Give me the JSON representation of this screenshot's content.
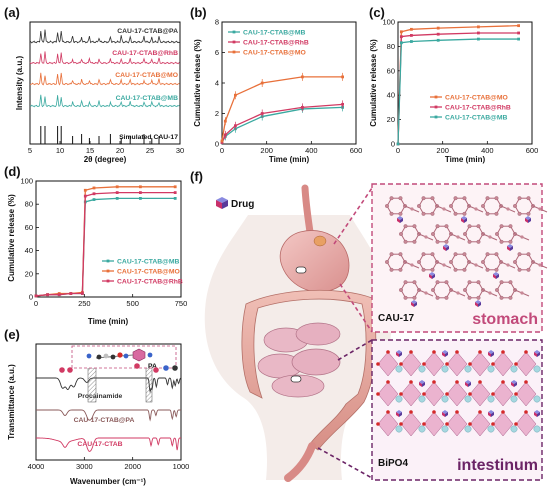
{
  "figure": {
    "panels": [
      "(a)",
      "(b)",
      "(c)",
      "(d)",
      "(e)",
      "(f)"
    ],
    "drug_label": "Drug",
    "cau17_label": "CAU-17",
    "stomach_label": "stomach",
    "bipo4_label": "BiPO4",
    "intestinum_label": "intestinum",
    "colors": {
      "MB": "#3aa9a0",
      "RhB": "#d13a63",
      "MO": "#e8703a",
      "PA": "#333333",
      "pink": "#c24a7a",
      "purple": "#6b2466"
    }
  },
  "chart_data": [
    {
      "panel": "(a)",
      "type": "line",
      "xlabel": "2θ (degree)",
      "ylabel": "Intensity (a.u.)",
      "xlim": [
        5,
        30
      ],
      "xticks": [
        "5",
        "10",
        "15",
        "20",
        "25",
        "30"
      ],
      "series": [
        {
          "name": "CAU-17-CTAB@PA",
          "color": "#333333"
        },
        {
          "name": "CAU-17-CTAB@RhB",
          "color": "#d13a63"
        },
        {
          "name": "CAU-17-CTAB@MO",
          "color": "#e8703a"
        },
        {
          "name": "CAU-17-CTAB@MB",
          "color": "#3aa9a0"
        },
        {
          "name": "Simulated CAU-17",
          "color": "#111111"
        }
      ],
      "peaks": [
        6.8,
        7.5,
        9.6,
        10.2,
        12.1,
        13.6,
        14.9,
        16.5,
        18.4,
        20.2,
        21.7,
        24.0,
        25.3,
        26.5
      ]
    },
    {
      "panel": "(b)",
      "type": "line",
      "xlabel": "Time (min)",
      "ylabel": "Cumulative release (%)",
      "xlim": [
        0,
        600
      ],
      "ylim": [
        0,
        8
      ],
      "xticks": [
        "0",
        "200",
        "400",
        "600"
      ],
      "yticks": [
        "0",
        "2",
        "4",
        "6",
        "8"
      ],
      "x": [
        0,
        15,
        60,
        180,
        360,
        540
      ],
      "series": [
        {
          "name": "CAU-17-CTAB@MB",
          "color": "#3aa9a0",
          "values": [
            0.1,
            0.5,
            1.0,
            1.8,
            2.3,
            2.4
          ]
        },
        {
          "name": "CAU-17-CTAB@RhB",
          "color": "#d13a63",
          "values": [
            0.1,
            0.6,
            1.2,
            2.0,
            2.4,
            2.6
          ]
        },
        {
          "name": "CAU-17-CTAB@MO",
          "color": "#e8703a",
          "values": [
            0.2,
            1.5,
            3.2,
            4.0,
            4.4,
            4.4
          ]
        }
      ]
    },
    {
      "panel": "(c)",
      "type": "line",
      "xlabel": "Time (min)",
      "ylabel": "Cumulative release (%)",
      "xlim": [
        0,
        600
      ],
      "ylim": [
        0,
        100
      ],
      "xticks": [
        "0",
        "200",
        "400",
        "600"
      ],
      "yticks": [
        "0",
        "20",
        "40",
        "60",
        "80",
        "100"
      ],
      "x": [
        0,
        15,
        60,
        180,
        360,
        540
      ],
      "series": [
        {
          "name": "CAU-17-CTAB@MO",
          "color": "#e8703a",
          "values": [
            0,
            92,
            94,
            95,
            96,
            97
          ]
        },
        {
          "name": "CAU-17-CTAB@RhB",
          "color": "#d13a63",
          "values": [
            0,
            88,
            89,
            90,
            91,
            91
          ]
        },
        {
          "name": "CAU-17-CTAB@MB",
          "color": "#3aa9a0",
          "values": [
            0,
            83,
            84,
            85,
            86,
            86
          ]
        }
      ]
    },
    {
      "panel": "(d)",
      "type": "line",
      "xlabel": "Time (min)",
      "ylabel": "Cumulative release (%)",
      "xlim": [
        0,
        750
      ],
      "ylim": [
        0,
        100
      ],
      "xticks": [
        "0",
        "250",
        "500",
        "750"
      ],
      "yticks": [
        "0",
        "20",
        "40",
        "60",
        "80",
        "100"
      ],
      "x": [
        0,
        60,
        120,
        180,
        240,
        255,
        300,
        420,
        540,
        720
      ],
      "series": [
        {
          "name": "CAU-17-CTAB@MB",
          "color": "#3aa9a0",
          "values": [
            1,
            2,
            2,
            3,
            3,
            82,
            84,
            85,
            85,
            85
          ]
        },
        {
          "name": "CAU-17-CTAB@MO",
          "color": "#e8703a",
          "values": [
            1,
            2,
            3,
            3,
            4,
            92,
            94,
            95,
            95,
            95
          ]
        },
        {
          "name": "CAU-17-CTAB@RhB",
          "color": "#d13a63",
          "values": [
            1,
            2,
            2,
            3,
            3,
            87,
            89,
            90,
            90,
            90
          ]
        }
      ]
    },
    {
      "panel": "(e)",
      "type": "line",
      "xlabel": "Wavenumber (cm⁻¹)",
      "ylabel": "Transmittance (a.u.)",
      "xlim": [
        4000,
        1000
      ],
      "xticks": [
        "4000",
        "3000",
        "2000",
        "1000"
      ],
      "series": [
        {
          "name": "Procainamide",
          "color": "#333333"
        },
        {
          "name": "CAU-17-CTAB@PA",
          "color": "#8a5a5a"
        },
        {
          "name": "CAU-17-CTAB",
          "color": "#d13a63"
        }
      ],
      "annotations": [
        "PA"
      ]
    }
  ]
}
